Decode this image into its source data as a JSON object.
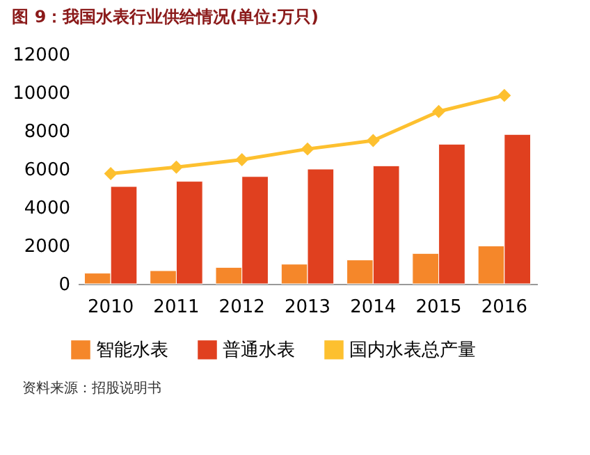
{
  "chart_data": {
    "type": "bar",
    "title": "图 9：我国水表行业供给情况(单位:万只)",
    "categories": [
      "2010",
      "2011",
      "2012",
      "2013",
      "2014",
      "2015",
      "2016"
    ],
    "series": [
      {
        "name": "智能水表",
        "color": "#f5872a",
        "values": [
          560,
          690,
          860,
          1030,
          1250,
          1590,
          1980
        ]
      },
      {
        "name": "普通水表",
        "color": "#e0401f",
        "values": [
          5090,
          5360,
          5610,
          6000,
          6170,
          7300,
          7810
        ]
      },
      {
        "name": "国内水表总产量",
        "type": "line",
        "color": "#fdc02f",
        "marker": "diamond",
        "values": [
          5760,
          6100,
          6490,
          7050,
          7490,
          9010,
          9850
        ]
      }
    ],
    "ylim": [
      0,
      12000
    ],
    "yticks": [
      0,
      2000,
      4000,
      6000,
      8000,
      10000,
      12000
    ],
    "grid": false,
    "legend": "bottom",
    "annotations": [
      "资料来源：招股说明书"
    ]
  }
}
